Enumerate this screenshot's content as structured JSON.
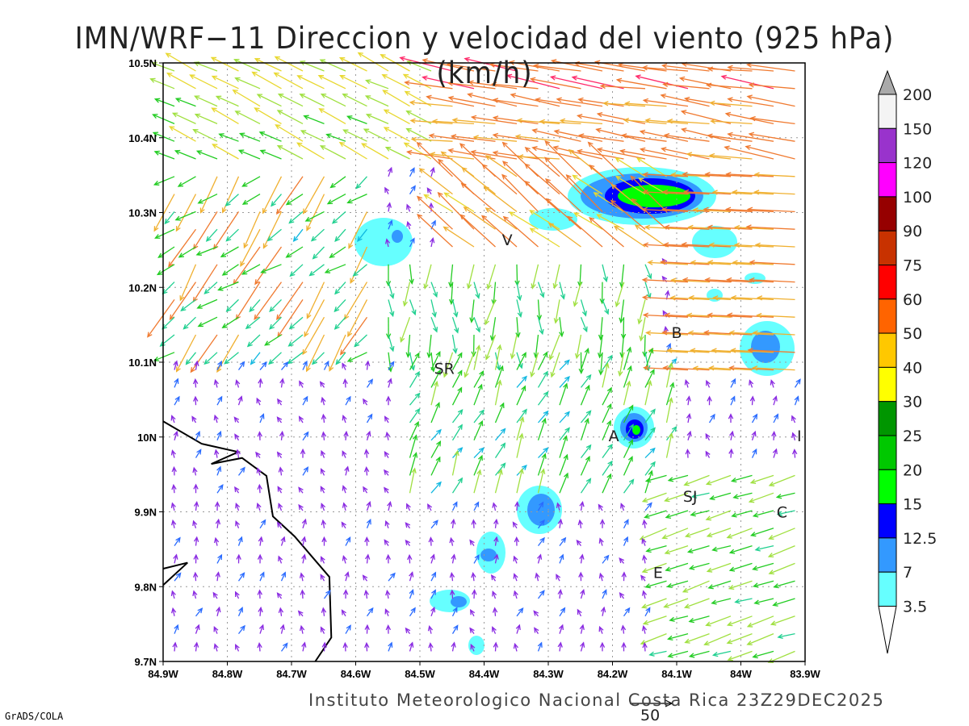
{
  "title": "IMN/WRF−11 Direccion y velocidad del viento (925 hPa)(km/h)",
  "credit": "Instituto Meteorologico Nacional Costa Rica  23Z29DEC2025",
  "software": "GrADS/COLA",
  "reference_vector": {
    "label": "50",
    "speed": 50
  },
  "axes": {
    "lon_ticks": [
      "84.9W",
      "84.8W",
      "84.7W",
      "84.6W",
      "84.5W",
      "84.4W",
      "84.3W",
      "84.2W",
      "84.1W",
      "84W",
      "83.9W"
    ],
    "lat_ticks": [
      "10.5N",
      "10.4N",
      "10.3N",
      "10.2N",
      "10.1N",
      "10N",
      "9.9N",
      "9.8N",
      "9.7N"
    ],
    "lon_range": [
      -84.9,
      -83.9
    ],
    "lat_range": [
      9.7,
      10.5
    ]
  },
  "colorbar": {
    "labels": [
      "3.5",
      "7",
      "12.5",
      "15",
      "20",
      "25",
      "30",
      "40",
      "50",
      "60",
      "75",
      "90",
      "100",
      "120",
      "150",
      "200"
    ],
    "colors": [
      "#66ffff",
      "#3399ff",
      "#0000ff",
      "#00ff00",
      "#00c800",
      "#009600",
      "#ffff00",
      "#ffc800",
      "#ff6400",
      "#ff0000",
      "#c83200",
      "#960000",
      "#ff00ff",
      "#9933cc",
      "#f4f4f4"
    ],
    "over_color": "#aaaaaa",
    "under_color": "#ffffff"
  },
  "cities": [
    {
      "label": "V",
      "lon": -84.364,
      "lat": 10.264
    },
    {
      "label": "SR",
      "lon": -84.462,
      "lat": 10.092
    },
    {
      "label": "B",
      "lon": -84.1,
      "lat": 10.14
    },
    {
      "label": "A",
      "lon": -84.198,
      "lat": 10.002
    },
    {
      "label": "SJ",
      "lon": -84.079,
      "lat": 9.921
    },
    {
      "label": "C",
      "lon": -83.936,
      "lat": 9.9
    },
    {
      "label": "E",
      "lon": -84.129,
      "lat": 9.819
    },
    {
      "label": "I",
      "lon": -83.909,
      "lat": 10.002
    }
  ],
  "coastlines": [
    [
      [
        -84.9,
        10.021
      ],
      [
        -84.84,
        9.991
      ],
      [
        -84.783,
        9.98
      ],
      [
        -84.825,
        9.964
      ],
      [
        -84.777,
        9.972
      ],
      [
        -84.739,
        9.948
      ],
      [
        -84.729,
        9.894
      ],
      [
        -84.695,
        9.867
      ],
      [
        -84.641,
        9.813
      ],
      [
        -84.638,
        9.732
      ],
      [
        -84.663,
        9.7
      ]
    ],
    [
      [
        -84.9,
        9.824
      ],
      [
        -84.862,
        9.832
      ],
      [
        -84.9,
        9.802
      ]
    ]
  ]
}
